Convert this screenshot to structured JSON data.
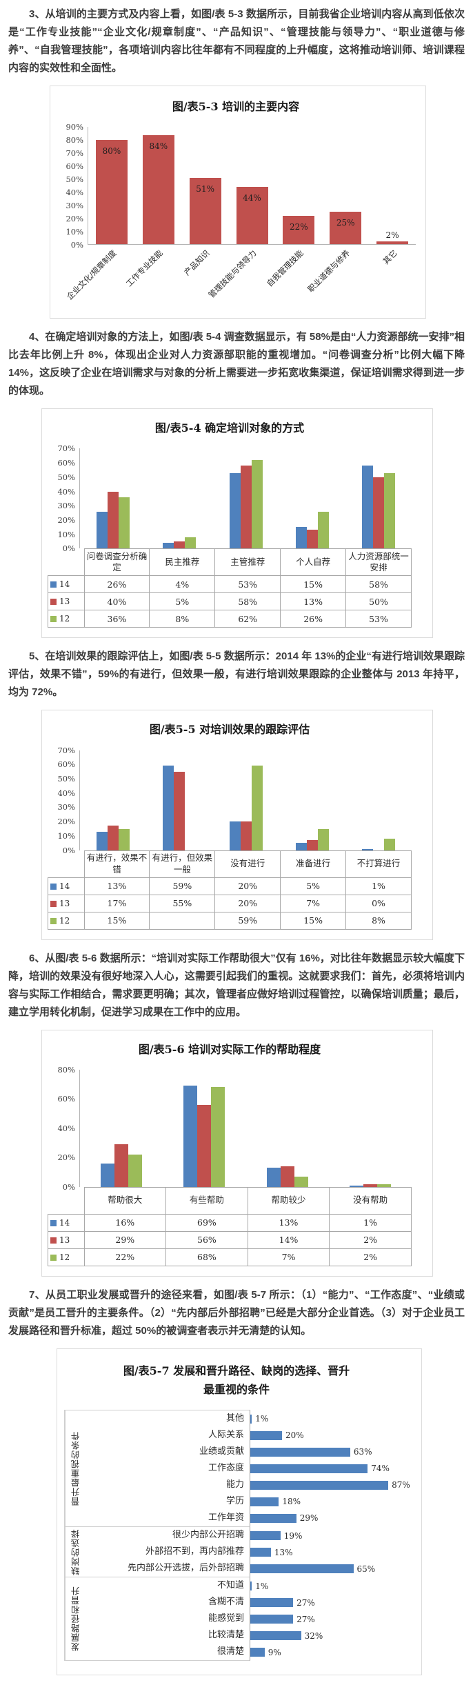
{
  "document": {
    "p3": "3、从培训的主要方式及内容上看，如图/表 5-3 数据所示，目前我省企业培训内容从高到低依次是“工作专业技能”“企业文化/规章制度”、“产品知识”、“管理技能与领导力”、“职业道德与修养”、“自我管理技能”，各项培训内容比往年都有不同程度的上升幅度，这将推动培训师、培训课程内容的实效性和全面性。",
    "p4": "4、在确定培训对象的方法上，如图/表 5-4 调查数据显示，有 58%是由“人力资源部统一安排”相比去年比例上升 8%，体现出企业对人力资源部职能的重视增加。“问卷调查分析”比例大幅下降 14%，这反映了企业在培训需求与对象的分析上需要进一步拓宽收集渠道，保证培训需求得到进一步的体现。",
    "p5": "5、在培训效果的跟踪评估上，如图/表 5-5 数据所示：2014 年 13%的企业“有进行培训效果跟踪评估，效果不错”，59%的有进行，但效果一般，有进行培训效果跟踪的企业整体与 2013 年持平，均为 72%。",
    "p6": "6、从图/表 5-6 数据所示：“培训对实际工作帮助很大”仅有 16%，对比往年数据显示较大幅度下降，培训的效果没有很好地深入人心，这需要引起我们的重视。这就要求我们：首先，必须将培训内容与实际工作相结合，需求要更明确；其次，管理者应做好培训过程管控，以确保培训质量；最后，建立学用转化机制，促进学习成果在工作中的应用。",
    "p7": "7、从员工职业发展或晋升的途径来看，如图/表 5-7 所示：（1）“能力”、“工作态度”、“业绩或贡献”是员工晋升的主要条件。（2）“先内部后外部招聘”已经是大部分企业首选。（3）对于企业员工发展路径和晋升标准，超过 50%的被调查者表示并无清楚的认知。"
  },
  "chart_data": [
    {
      "type": "bar",
      "title": "图/表5-3 培训的主要内容",
      "categories": [
        "企业文化/规章制度",
        "工作专业技能",
        "产品知识",
        "管理技能与领导力",
        "自我管理技能",
        "职业道德与修养",
        "其它"
      ],
      "values": [
        80,
        84,
        51,
        44,
        22,
        25,
        2
      ],
      "ymax": 90,
      "ytick": 10,
      "bar_color": "#c0504d",
      "grid": false,
      "legend": "none"
    },
    {
      "type": "grouped_bar_table",
      "title": "图/表5-4 确定培训对象的方式",
      "categories": [
        "问卷调查分析确定",
        "民主推荐",
        "主管推荐",
        "个人自荐",
        "人力资源部统一安排"
      ],
      "series": [
        {
          "name": "14",
          "color": "#4f81bd",
          "values": [
            26,
            4,
            53,
            15,
            58
          ]
        },
        {
          "name": "13",
          "color": "#c0504d",
          "values": [
            40,
            5,
            58,
            13,
            50
          ]
        },
        {
          "name": "12",
          "color": "#9bbb59",
          "values": [
            36,
            8,
            62,
            26,
            53
          ]
        }
      ],
      "ymax": 70,
      "ytick": 10,
      "grid": false,
      "legend": "data-table-keys"
    },
    {
      "type": "grouped_bar_table",
      "title": "图/表5-5 对培训效果的跟踪评估",
      "categories": [
        "有进行，效果不错",
        "有进行，但效果一般",
        "没有进行",
        "准备进行",
        "不打算进行"
      ],
      "series": [
        {
          "name": "14",
          "color": "#4f81bd",
          "values": [
            13,
            59,
            20,
            5,
            1
          ]
        },
        {
          "name": "13",
          "color": "#c0504d",
          "values": [
            17,
            55,
            20,
            7,
            0
          ]
        },
        {
          "name": "12",
          "color": "#9bbb59",
          "values": [
            15,
            null,
            59,
            15,
            8
          ]
        }
      ],
      "ymax": 70,
      "ytick": 10,
      "grid": false,
      "legend": "data-table-keys"
    },
    {
      "type": "grouped_bar_table",
      "title": "图/表5-6 培训对实际工作的帮助程度",
      "categories": [
        "帮助很大",
        "有些帮助",
        "帮助较少",
        "没有帮助"
      ],
      "series": [
        {
          "name": "14",
          "color": "#4f81bd",
          "values": [
            16,
            69,
            13,
            1
          ]
        },
        {
          "name": "13",
          "color": "#c0504d",
          "values": [
            29,
            56,
            14,
            2
          ]
        },
        {
          "name": "12",
          "color": "#9bbb59",
          "values": [
            22,
            68,
            7,
            2
          ]
        }
      ],
      "ymax": 80,
      "ytick": 20,
      "grid": false,
      "legend": "data-table-keys"
    },
    {
      "type": "hbar_grouped",
      "title": "图/表5-7 发展和晋升路径、缺岗的选择、晋升\n最重视的条件",
      "groups": [
        {
          "label": "晋升最重视的条件",
          "items": [
            {
              "label": "其他",
              "value": 1
            },
            {
              "label": "人际关系",
              "value": 20
            },
            {
              "label": "业绩或贡献",
              "value": 63
            },
            {
              "label": "工作态度",
              "value": 74
            },
            {
              "label": "能力",
              "value": 87
            },
            {
              "label": "学历",
              "value": 18
            },
            {
              "label": "工作年资",
              "value": 29
            }
          ]
        },
        {
          "label": "缺岗的选择",
          "items": [
            {
              "label": "很少内部公开招聘",
              "value": 19
            },
            {
              "label": "外部招不到，再内部推荐",
              "value": 13
            },
            {
              "label": "先内部公开选拔，后外部招聘",
              "value": 65
            }
          ]
        },
        {
          "label": "发展路径和晋升",
          "items": [
            {
              "label": "不知道",
              "value": 1
            },
            {
              "label": "含糊不清",
              "value": 27
            },
            {
              "label": "能感觉到",
              "value": 27
            },
            {
              "label": "比较清楚",
              "value": 32
            },
            {
              "label": "很清楚",
              "value": 9
            }
          ]
        }
      ],
      "xmax": 100,
      "bar_color": "#4f81bd",
      "grid": false,
      "legend": "none"
    }
  ]
}
